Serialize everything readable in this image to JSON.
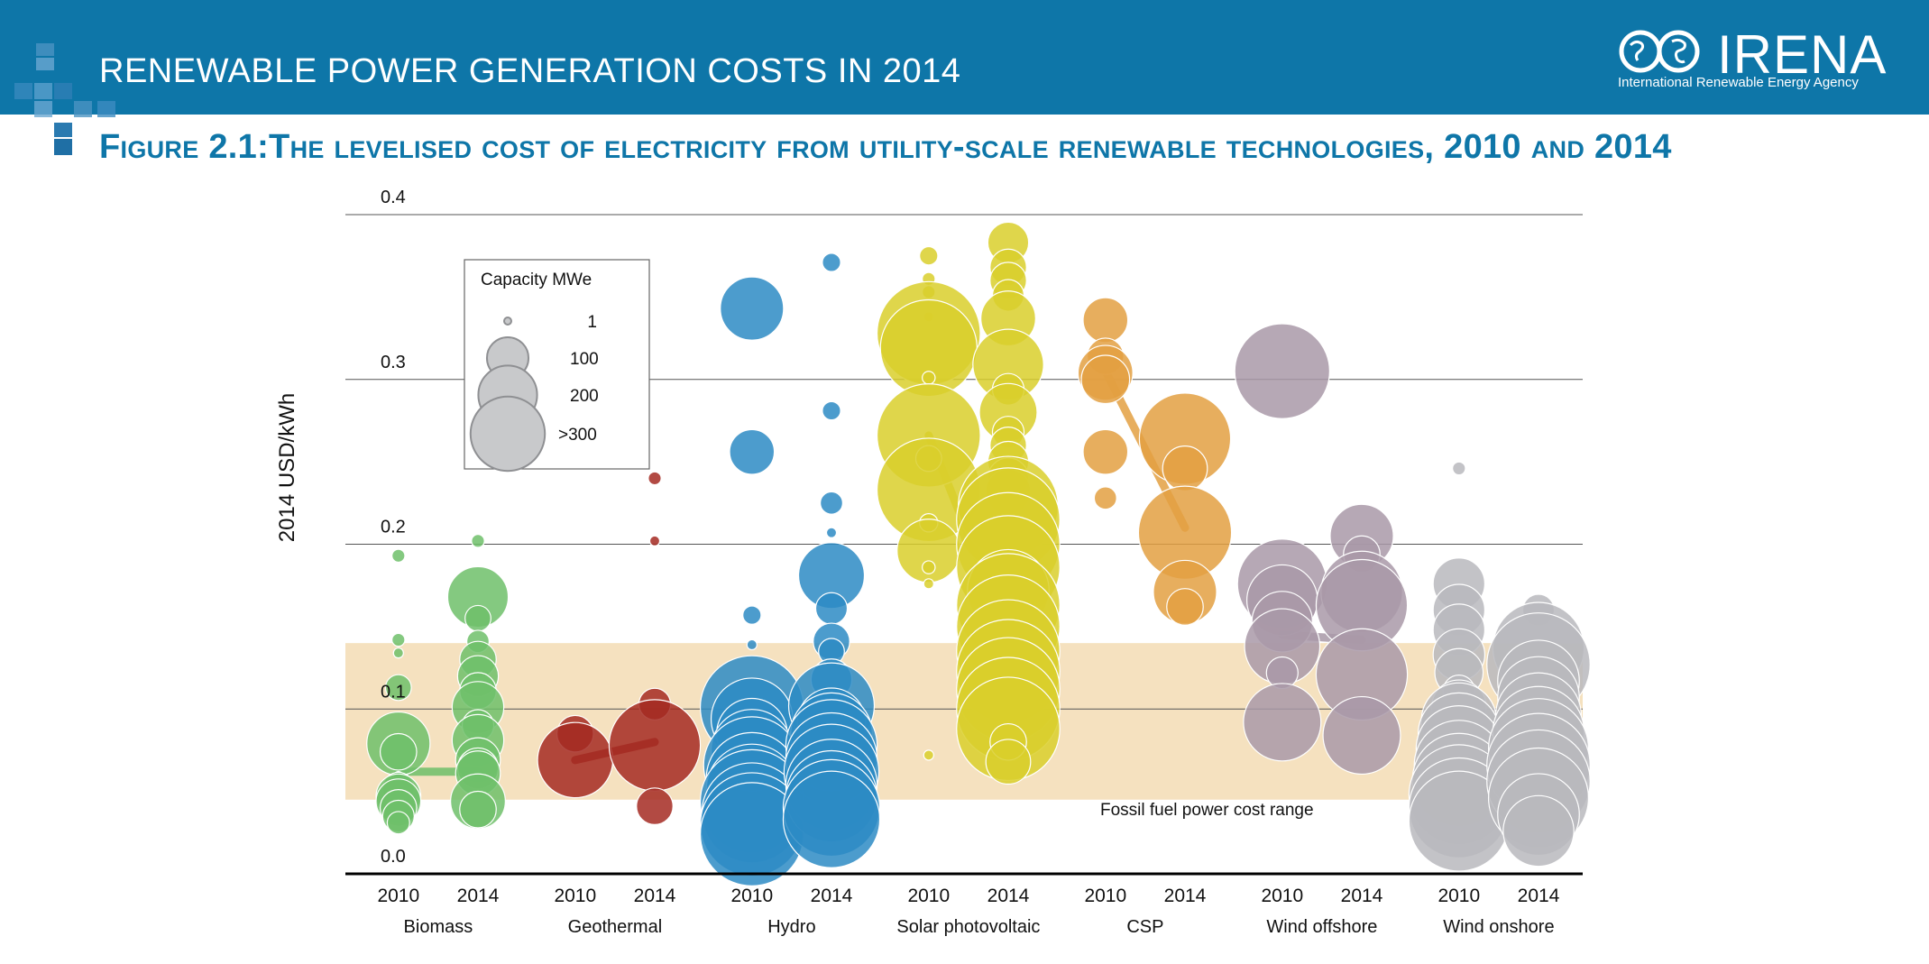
{
  "header": {
    "title": "RENEWABLE POWER GENERATION COSTS IN 2014",
    "logo_text": "IRENA",
    "logo_subtitle": "International Renewable Energy Agency"
  },
  "figure_title": "Figure 2.1:The levelised cost of electricity from utility-scale renewable technologies, 2010 and 2014",
  "colors": {
    "header": "#0e76a8",
    "band": "#f5e1bf",
    "biomass": "#6fbf6a",
    "geothermal": "#a52a22",
    "hydro": "#2d8bc4",
    "solar_pv": "#d9cf2c",
    "csp": "#e3a042",
    "wind_offshore": "#a999a8",
    "wind_onshore": "#b8b9bd"
  },
  "chart_data": {
    "type": "scatter",
    "title": "",
    "ylabel": "2014 USD/kWh",
    "ylim": [
      0.0,
      0.4
    ],
    "yticks": [
      "0.0",
      "0.1",
      "0.2",
      "0.3",
      "0.4"
    ],
    "grid": true,
    "band": {
      "label": "Fossil fuel power cost range",
      "from": 0.045,
      "to": 0.14
    },
    "legend": {
      "title": "Capacity MWe",
      "position": "top-left",
      "entries": [
        {
          "label": "1",
          "size": 1
        },
        {
          "label": "100",
          "size": 100
        },
        {
          "label": "200",
          "size": 200
        },
        {
          "label": ">300",
          "size": 320
        }
      ]
    },
    "years": [
      "2010",
      "2014"
    ],
    "technologies": [
      {
        "name": "Biomass",
        "color": "biomass",
        "avg2010": 0.062,
        "avg2014": 0.062,
        "points2010": [
          [
            0.193,
            5
          ],
          [
            0.142,
            5
          ],
          [
            0.134,
            3
          ],
          [
            0.113,
            20
          ],
          [
            0.079,
            120
          ],
          [
            0.074,
            40
          ],
          [
            0.059,
            3
          ],
          [
            0.052,
            30
          ],
          [
            0.047,
            60
          ],
          [
            0.044,
            60
          ],
          [
            0.04,
            40
          ],
          [
            0.035,
            30
          ],
          [
            0.031,
            15
          ]
        ],
        "points2014": [
          [
            0.202,
            5
          ],
          [
            0.168,
            110
          ],
          [
            0.155,
            20
          ],
          [
            0.141,
            15
          ],
          [
            0.13,
            40
          ],
          [
            0.12,
            50
          ],
          [
            0.111,
            40
          ],
          [
            0.101,
            80
          ],
          [
            0.09,
            30
          ],
          [
            0.081,
            80
          ],
          [
            0.069,
            60
          ],
          [
            0.064,
            50
          ],
          [
            0.061,
            60
          ],
          [
            0.044,
            90
          ],
          [
            0.039,
            40
          ]
        ]
      },
      {
        "name": "Geothermal",
        "color": "geothermal",
        "avg2010": 0.069,
        "avg2014": 0.08,
        "points2010": [
          [
            0.085,
            40
          ],
          [
            0.069,
            170
          ]
        ],
        "points2014": [
          [
            0.24,
            5
          ],
          [
            0.202,
            3
          ],
          [
            0.103,
            30
          ],
          [
            0.078,
            250
          ],
          [
            0.041,
            40
          ]
        ]
      },
      {
        "name": "Hydro",
        "color": "hydro",
        "avg2010": 0.04,
        "avg2014": 0.04,
        "points2010": [
          [
            0.343,
            120
          ],
          [
            0.256,
            60
          ],
          [
            0.157,
            10
          ],
          [
            0.139,
            3
          ],
          [
            0.101,
            320
          ],
          [
            0.094,
            200
          ],
          [
            0.085,
            150
          ],
          [
            0.075,
            200
          ],
          [
            0.066,
            280
          ],
          [
            0.058,
            250
          ],
          [
            0.051,
            250
          ],
          [
            0.044,
            320
          ],
          [
            0.037,
            300
          ],
          [
            0.03,
            320
          ],
          [
            0.024,
            320
          ]
        ],
        "points2014": [
          [
            0.371,
            10
          ],
          [
            0.281,
            10
          ],
          [
            0.225,
            15
          ],
          [
            0.207,
            3
          ],
          [
            0.181,
            130
          ],
          [
            0.161,
            30
          ],
          [
            0.141,
            40
          ],
          [
            0.135,
            20
          ],
          [
            0.118,
            50
          ],
          [
            0.102,
            220
          ],
          [
            0.092,
            140
          ],
          [
            0.085,
            200
          ],
          [
            0.078,
            250
          ],
          [
            0.07,
            250
          ],
          [
            0.062,
            270
          ],
          [
            0.054,
            250
          ],
          [
            0.047,
            250
          ],
          [
            0.04,
            280
          ],
          [
            0.033,
            280
          ]
        ]
      },
      {
        "name": "Solar photovoltaic",
        "color": "solar_pv",
        "avg2010": 0.266,
        "avg2014": 0.145,
        "points2010": [
          [
            0.375,
            10
          ],
          [
            0.361,
            5
          ],
          [
            0.353,
            5
          ],
          [
            0.338,
            3
          ],
          [
            0.328,
            320
          ],
          [
            0.319,
            280
          ],
          [
            0.301,
            5
          ],
          [
            0.266,
            320
          ],
          [
            0.252,
            20
          ],
          [
            0.233,
            320
          ],
          [
            0.213,
            10
          ],
          [
            0.196,
            120
          ],
          [
            0.186,
            5
          ],
          [
            0.176,
            3
          ],
          [
            0.072,
            3
          ]
        ],
        "points2014": [
          [
            0.383,
            50
          ],
          [
            0.368,
            40
          ],
          [
            0.36,
            40
          ],
          [
            0.351,
            30
          ],
          [
            0.337,
            90
          ],
          [
            0.309,
            150
          ],
          [
            0.294,
            30
          ],
          [
            0.28,
            100
          ],
          [
            0.268,
            30
          ],
          [
            0.26,
            40
          ],
          [
            0.25,
            50
          ],
          [
            0.24,
            50
          ],
          [
            0.232,
            60
          ],
          [
            0.223,
            300
          ],
          [
            0.215,
            320
          ],
          [
            0.2,
            320
          ],
          [
            0.186,
            320
          ],
          [
            0.172,
            200
          ],
          [
            0.163,
            320
          ],
          [
            0.15,
            320
          ],
          [
            0.135,
            320
          ],
          [
            0.123,
            320
          ],
          [
            0.112,
            320
          ],
          [
            0.1,
            320
          ],
          [
            0.088,
            320
          ],
          [
            0.08,
            40
          ],
          [
            0.068,
            60
          ]
        ]
      },
      {
        "name": "CSP",
        "color": "csp",
        "avg2010": 0.305,
        "avg2014": 0.21,
        "points2010": [
          [
            0.336,
            60
          ],
          [
            0.314,
            40
          ],
          [
            0.304,
            90
          ],
          [
            0.3,
            70
          ],
          [
            0.256,
            60
          ],
          [
            0.228,
            15
          ]
        ],
        "points2014": [
          [
            0.264,
            250
          ],
          [
            0.246,
            60
          ],
          [
            0.207,
            260
          ],
          [
            0.171,
            120
          ],
          [
            0.162,
            40
          ]
        ]
      },
      {
        "name": "Wind offshore",
        "color": "wind_offshore",
        "avg2010": 0.145,
        "avg2014": 0.142,
        "points2010": [
          [
            0.305,
            270
          ],
          [
            0.176,
            240
          ],
          [
            0.166,
            150
          ],
          [
            0.153,
            110
          ],
          [
            0.138,
            170
          ],
          [
            0.122,
            30
          ],
          [
            0.092,
            180
          ]
        ],
        "points2014": [
          [
            0.205,
            120
          ],
          [
            0.194,
            40
          ],
          [
            0.171,
            200
          ],
          [
            0.163,
            250
          ],
          [
            0.121,
            250
          ],
          [
            0.084,
            180
          ]
        ]
      },
      {
        "name": "Wind onshore",
        "color": "wind_onshore",
        "avg2010": 0.077,
        "avg2014": 0.07,
        "points2010": [
          [
            0.246,
            5
          ],
          [
            0.176,
            80
          ],
          [
            0.16,
            80
          ],
          [
            0.148,
            80
          ],
          [
            0.133,
            80
          ],
          [
            0.122,
            70
          ],
          [
            0.111,
            30
          ],
          [
            0.101,
            90
          ],
          [
            0.093,
            170
          ],
          [
            0.085,
            200
          ],
          [
            0.076,
            220
          ],
          [
            0.066,
            240
          ],
          [
            0.057,
            260
          ],
          [
            0.048,
            300
          ],
          [
            0.04,
            300
          ],
          [
            0.032,
            300
          ]
        ],
        "points2014": [
          [
            0.16,
            30
          ],
          [
            0.137,
            250
          ],
          [
            0.127,
            320
          ],
          [
            0.117,
            200
          ],
          [
            0.107,
            200
          ],
          [
            0.096,
            220
          ],
          [
            0.086,
            250
          ],
          [
            0.076,
            300
          ],
          [
            0.066,
            320
          ],
          [
            0.056,
            320
          ],
          [
            0.046,
            300
          ],
          [
            0.036,
            200
          ],
          [
            0.026,
            150
          ]
        ]
      }
    ]
  }
}
